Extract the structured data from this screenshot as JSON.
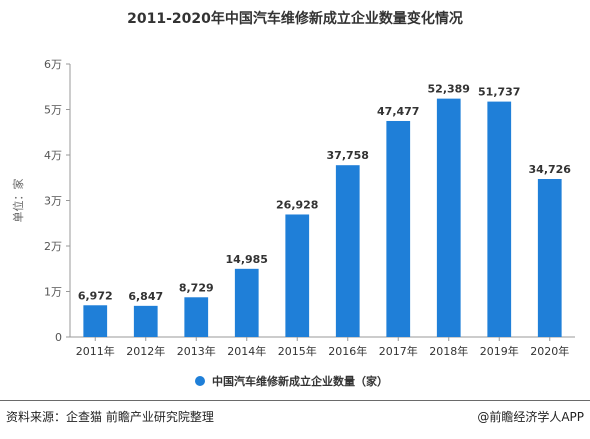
{
  "chart_data": {
    "type": "bar",
    "title": "2011-2020年中国汽车维修新成立企业数量变化情况",
    "ylabel": "单位：家",
    "xlabel": "",
    "categories": [
      "2011年",
      "2012年",
      "2013年",
      "2014年",
      "2015年",
      "2016年",
      "2017年",
      "2018年",
      "2019年",
      "2020年"
    ],
    "series": [
      {
        "name": "中国汽车维修新成立企业数量（家）",
        "values": [
          6972,
          6847,
          8729,
          14985,
          26928,
          37758,
          47477,
          52389,
          51737,
          34726
        ],
        "labels": [
          "6,972",
          "6,847",
          "8,729",
          "14,985",
          "26,928",
          "37,758",
          "47,477",
          "52,389",
          "51,737",
          "34,726"
        ]
      }
    ],
    "ylim": [
      0,
      60000
    ],
    "yticks": [
      0,
      10000,
      20000,
      30000,
      40000,
      50000,
      60000
    ],
    "ytick_labels": [
      "0",
      "1万",
      "2万",
      "3万",
      "4万",
      "5万",
      "6万"
    ],
    "grid": false,
    "legend_position": "bottom",
    "bar_color": "#1f7fd8"
  },
  "footer": {
    "source": "资料来源：企查猫 前瞻产业研究院整理",
    "credit": "@前瞻经济学人APP"
  }
}
